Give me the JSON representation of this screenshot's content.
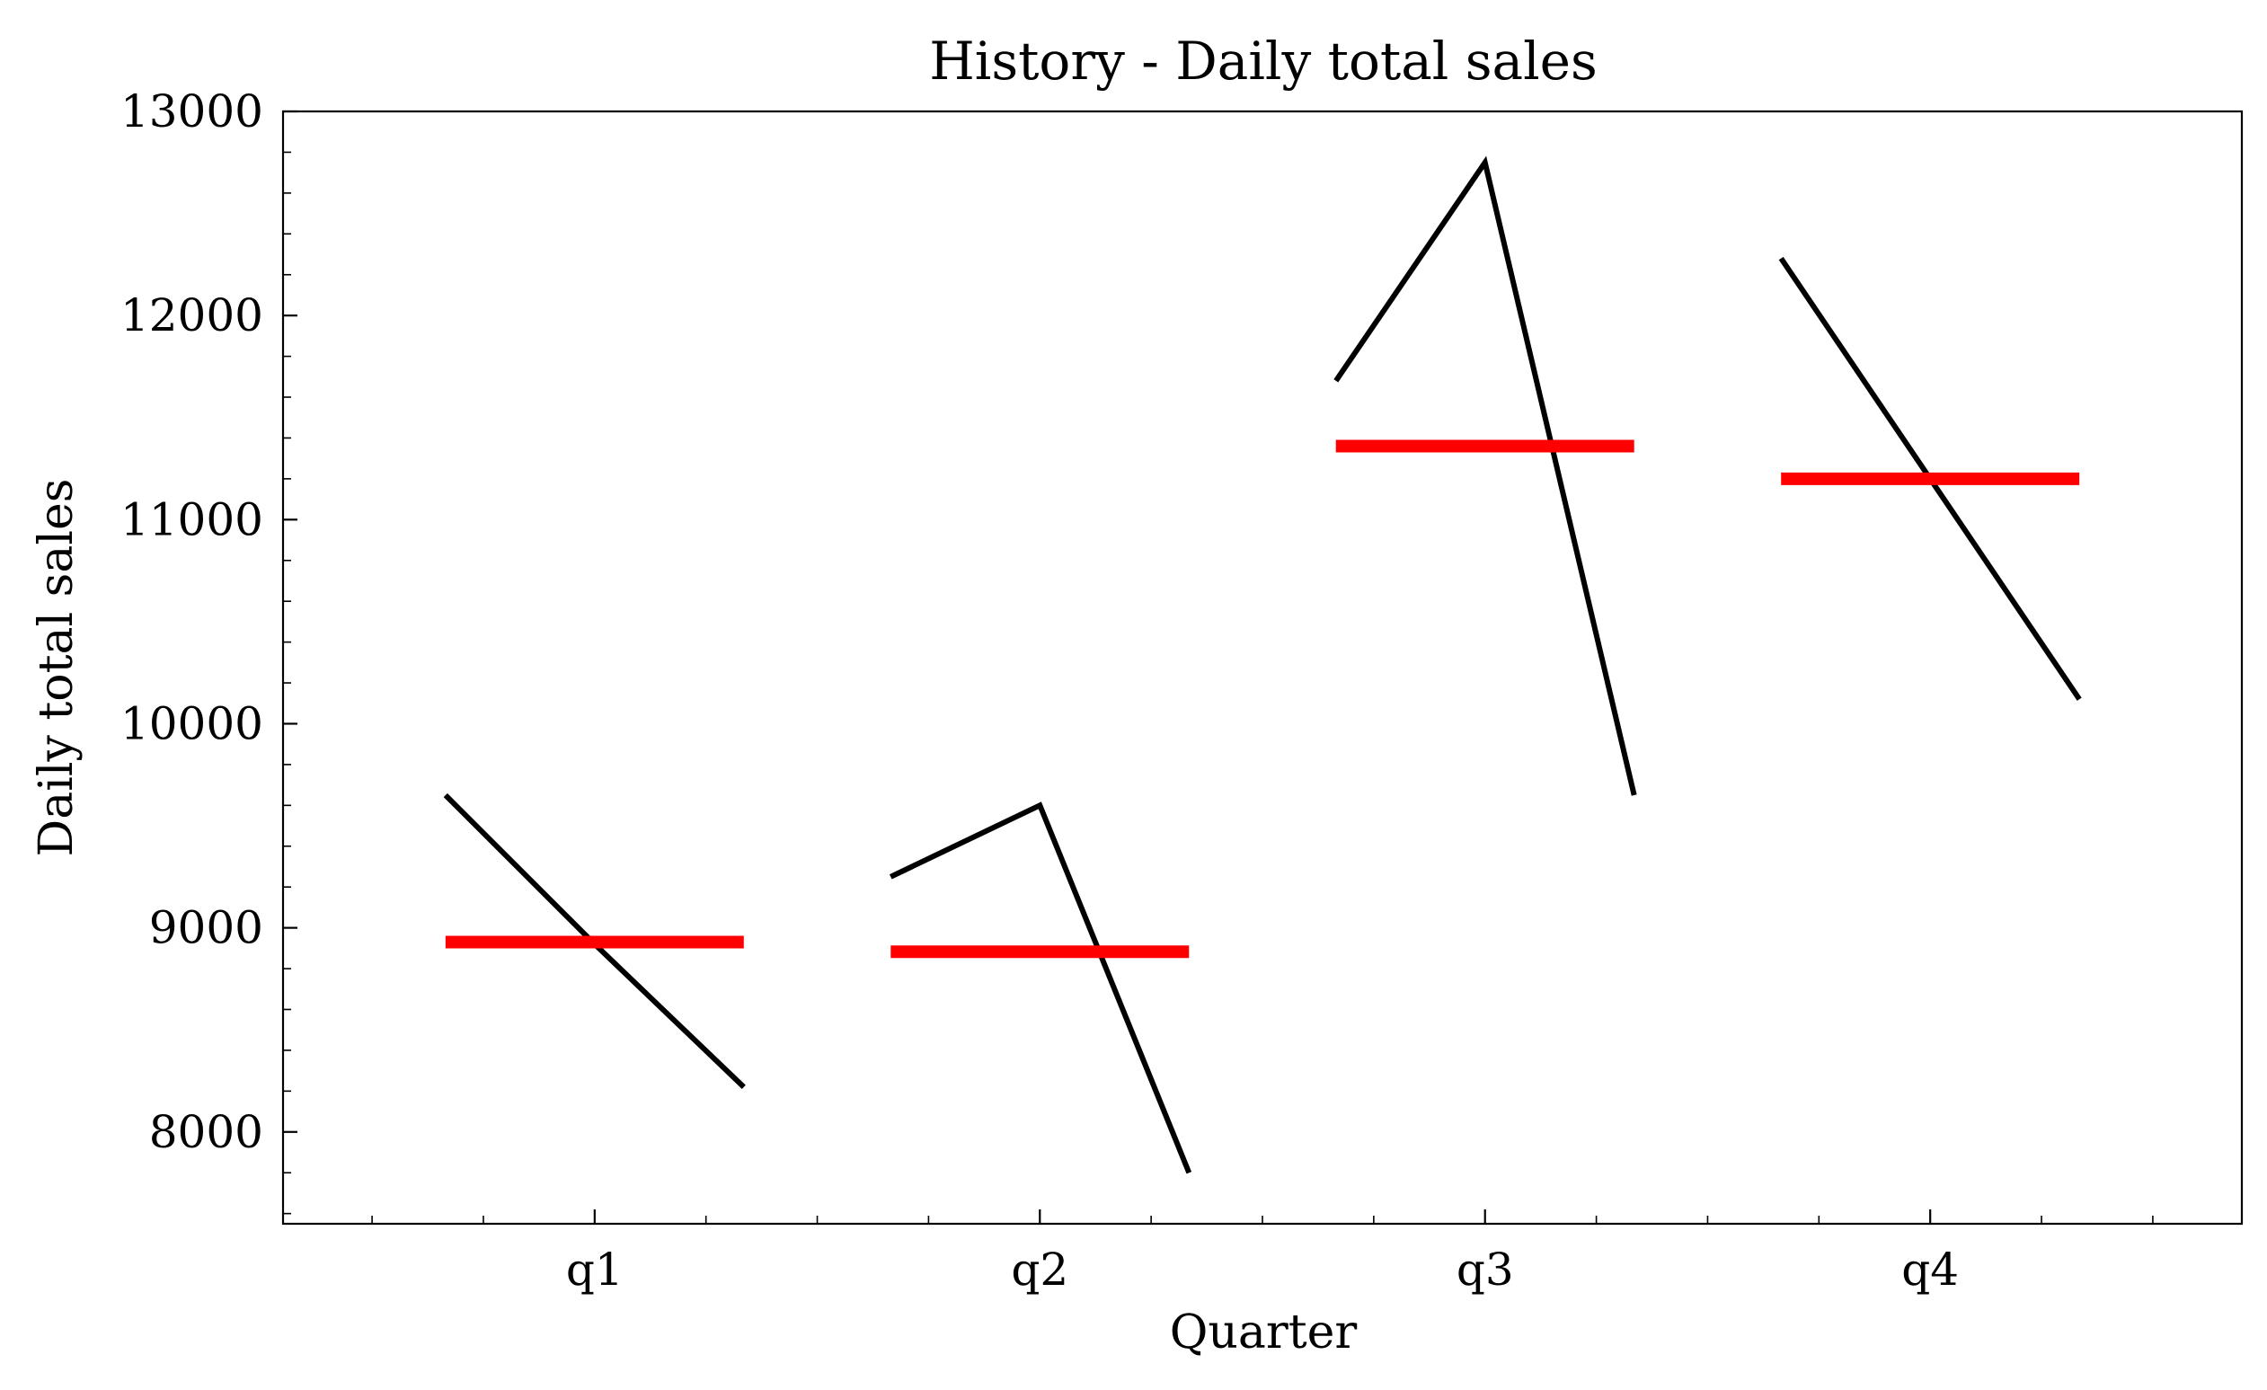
{
  "chart_data": {
    "type": "line",
    "title": "History - Daily total sales",
    "xlabel": "Quarter",
    "ylabel": "Daily total sales",
    "ylim": [
      7550,
      13000
    ],
    "yticks": [
      "8000",
      "9000",
      "10000",
      "11000",
      "12000",
      "13000"
    ],
    "categories": [
      "q1",
      "q2",
      "q3",
      "q4"
    ],
    "grid": false,
    "groups": [
      {
        "category": "q1",
        "values": [
          9650,
          8920,
          8220
        ],
        "mean": 8930
      },
      {
        "category": "q2",
        "values": [
          9250,
          9600,
          7800
        ],
        "mean": 8883
      },
      {
        "category": "q3",
        "values": [
          11680,
          12750,
          9650
        ],
        "mean": 11360
      },
      {
        "category": "q4",
        "values": [
          12280,
          11200,
          10120
        ],
        "mean": 11200
      }
    ],
    "colors": {
      "series": "#000000",
      "mean": "#ff0000"
    }
  }
}
